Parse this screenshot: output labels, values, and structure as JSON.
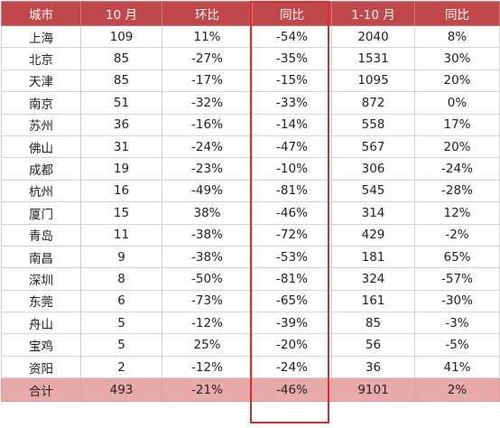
{
  "columns": [
    "城市",
    "10 月",
    "环比",
    "同比",
    "1-10 月",
    "同比"
  ],
  "rows": [
    {
      "city": "上海",
      "oct": "109",
      "mom": "11%",
      "yoy": "-54%",
      "ytd": "2040",
      "ytd_yoy": "8%"
    },
    {
      "city": "北京",
      "oct": "85",
      "mom": "-27%",
      "yoy": "-35%",
      "ytd": "1531",
      "ytd_yoy": "30%"
    },
    {
      "city": "天津",
      "oct": "85",
      "mom": "-17%",
      "yoy": "-15%",
      "ytd": "1095",
      "ytd_yoy": "20%"
    },
    {
      "city": "南京",
      "oct": "51",
      "mom": "-32%",
      "yoy": "-33%",
      "ytd": "872",
      "ytd_yoy": "0%"
    },
    {
      "city": "苏州",
      "oct": "36",
      "mom": "-16%",
      "yoy": "-14%",
      "ytd": "558",
      "ytd_yoy": "17%"
    },
    {
      "city": "佛山",
      "oct": "31",
      "mom": "-24%",
      "yoy": "-47%",
      "ytd": "567",
      "ytd_yoy": "20%"
    },
    {
      "city": "成都",
      "oct": "19",
      "mom": "-23%",
      "yoy": "-10%",
      "ytd": "306",
      "ytd_yoy": "-24%"
    },
    {
      "city": "杭州",
      "oct": "16",
      "mom": "-49%",
      "yoy": "-81%",
      "ytd": "545",
      "ytd_yoy": "-28%"
    },
    {
      "city": "厦门",
      "oct": "15",
      "mom": "38%",
      "yoy": "-46%",
      "ytd": "314",
      "ytd_yoy": "12%"
    },
    {
      "city": "青岛",
      "oct": "11",
      "mom": "-38%",
      "yoy": "-72%",
      "ytd": "429",
      "ytd_yoy": "-2%"
    },
    {
      "city": "南昌",
      "oct": "9",
      "mom": "-38%",
      "yoy": "-53%",
      "ytd": "181",
      "ytd_yoy": "65%"
    },
    {
      "city": "深圳",
      "oct": "8",
      "mom": "-50%",
      "yoy": "-81%",
      "ytd": "324",
      "ytd_yoy": "-57%"
    },
    {
      "city": "东莞",
      "oct": "6",
      "mom": "-73%",
      "yoy": "-65%",
      "ytd": "161",
      "ytd_yoy": "-30%"
    },
    {
      "city": "舟山",
      "oct": "5",
      "mom": "-12%",
      "yoy": "-39%",
      "ytd": "85",
      "ytd_yoy": "-3%"
    },
    {
      "city": "宝鸡",
      "oct": "5",
      "mom": "25%",
      "yoy": "-20%",
      "ytd": "56",
      "ytd_yoy": "-5%"
    },
    {
      "city": "资阳",
      "oct": "2",
      "mom": "-12%",
      "yoy": "-24%",
      "ytd": "36",
      "ytd_yoy": "41%"
    }
  ],
  "total": {
    "city": "合计",
    "oct": "493",
    "mom": "-21%",
    "yoy": "-46%",
    "ytd": "9101",
    "ytd_yoy": "2%"
  },
  "colors": {
    "header_bg": "#c0474a",
    "total_bg": "#e8a9aa",
    "highlight_border": "#e32a2a"
  }
}
